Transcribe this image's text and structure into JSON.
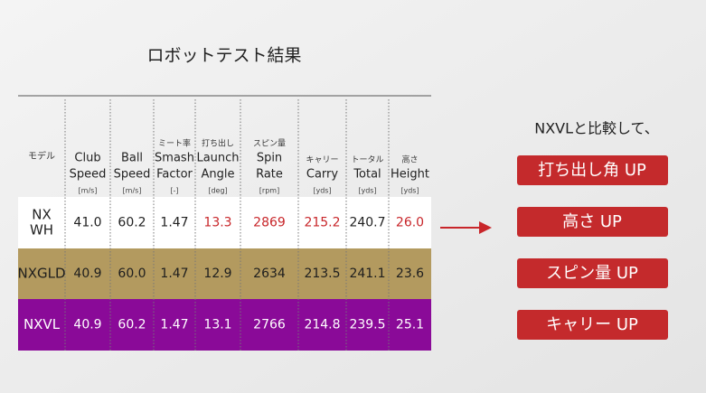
{
  "title": "ロボットテスト結果",
  "table": {
    "header": [
      {
        "lines": [
          "モデル"
        ]
      },
      {
        "lines": [
          "Club",
          "Speed"
        ],
        "unit": "[m/s]"
      },
      {
        "lines": [
          "Ball",
          "Speed"
        ],
        "unit": "[m/s]"
      },
      {
        "jp": "ミート率",
        "lines": [
          "Smash",
          "Factor"
        ],
        "unit": "[-]"
      },
      {
        "jp": "打ち出し",
        "lines": [
          "Launch",
          "Angle"
        ],
        "unit": "[deg]"
      },
      {
        "jp": "スピン量",
        "lines": [
          "Spin",
          "Rate"
        ],
        "unit": "[rpm]"
      },
      {
        "jp": "キャリー",
        "lines": [
          "Carry"
        ],
        "unit": "[yds]"
      },
      {
        "jp": "トータル",
        "lines": [
          "Total"
        ],
        "unit": "[yds]"
      },
      {
        "jp": "高さ",
        "lines": [
          "Height"
        ],
        "unit": "[yds]"
      }
    ],
    "rows": [
      {
        "model": [
          "NX",
          "WH"
        ],
        "cells": [
          "41.0",
          "60.2",
          "1.47",
          "13.3",
          "2869",
          "215.2",
          "240.7",
          "26.0"
        ],
        "highlight": [
          false,
          false,
          false,
          true,
          true,
          true,
          false,
          true
        ],
        "background": "#ffffff",
        "text_color": "#222222"
      },
      {
        "model": [
          "NXGLD"
        ],
        "cells": [
          "40.9",
          "60.0",
          "1.47",
          "12.9",
          "2634",
          "213.5",
          "241.1",
          "23.6"
        ],
        "background": "#b39a5f",
        "text_color": "#1e1e1e"
      },
      {
        "model": [
          "NXVL"
        ],
        "cells": [
          "40.9",
          "60.2",
          "1.47",
          "13.1",
          "2766",
          "214.8",
          "239.5",
          "25.1"
        ],
        "background": "#8a0a98",
        "text_color": "#ffffff"
      }
    ]
  },
  "comparison": {
    "label": "NXVLと比較して、",
    "items": [
      "打ち出し角 UP",
      "高さ UP",
      "スピン量 UP",
      "キャリー UP"
    ]
  }
}
